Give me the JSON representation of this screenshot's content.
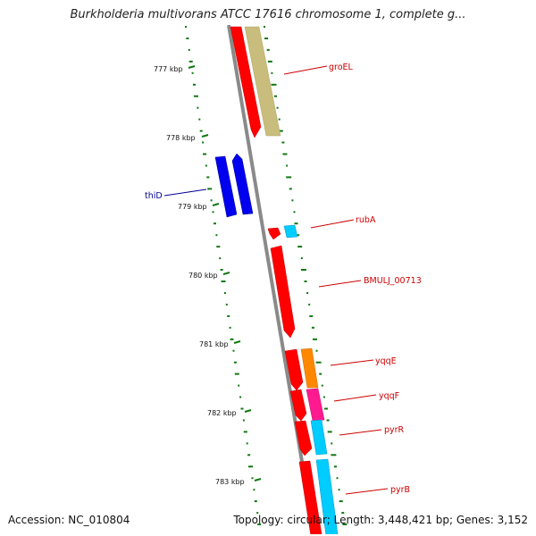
{
  "header": {
    "title": "Burkholderia multivorans ATCC 17616 chromosome 1, complete g..."
  },
  "footer": {
    "accession": "Accession: NC_010804",
    "summary": "Topology: circular; Length: 3,448,421 bp; Genes: 3,152"
  },
  "ruler": {
    "ticks": [
      "777 kbp",
      "778 kbp",
      "779 kbp",
      "780 kbp",
      "781 kbp",
      "782 kbp",
      "783 kbp"
    ]
  },
  "genes": [
    {
      "label": "groEL",
      "color": "#cc0000"
    },
    {
      "label": "thiD",
      "color": "#000099"
    },
    {
      "label": "rubA",
      "color": "#cc0000"
    },
    {
      "label": "BMULJ_00713",
      "color": "#cc0000"
    },
    {
      "label": "yqqE",
      "color": "#cc0000"
    },
    {
      "label": "yqqF",
      "color": "#cc0000"
    },
    {
      "label": "pyrR",
      "color": "#cc0000"
    },
    {
      "label": "pyrB",
      "color": "#cc0000"
    }
  ],
  "colors": {
    "cds_red": "#ff0000",
    "cds_blue": "#0000ee",
    "cds_khaki": "#c8bd7c",
    "cds_cyan": "#00ccff",
    "cds_orange": "#ff8800",
    "cds_magenta": "#ff1a90",
    "backbone": "#888888",
    "gc_dots": "#117711"
  }
}
